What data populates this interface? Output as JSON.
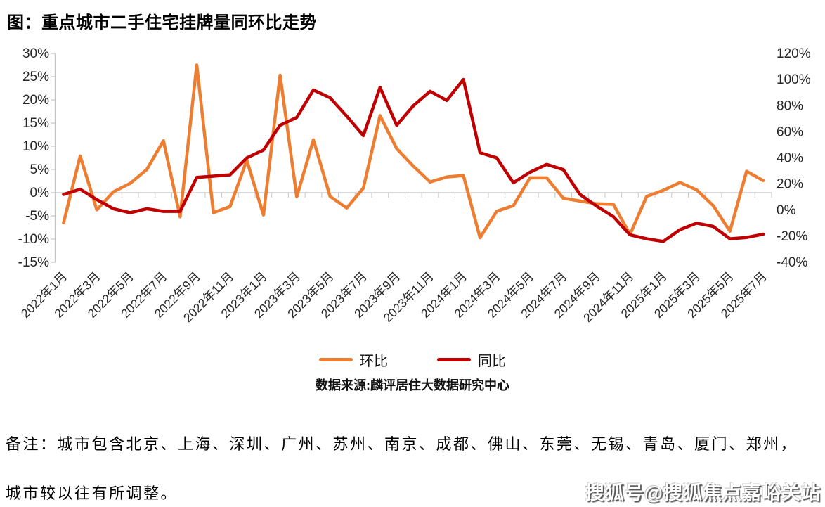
{
  "page": {
    "title": "图：重点城市二手住宅挂牌量同环比走势"
  },
  "chart_data": {
    "type": "line",
    "title": "图：重点城市二手住宅挂牌量同环比走势",
    "categories": [
      "2022年1月",
      "2022年2月",
      "2022年3月",
      "2022年4月",
      "2022年5月",
      "2022年6月",
      "2022年7月",
      "2022年8月",
      "2022年9月",
      "2022年10月",
      "2022年11月",
      "2022年12月",
      "2023年1月",
      "2023年2月",
      "2023年3月",
      "2023年4月",
      "2023年5月",
      "2023年6月",
      "2023年7月",
      "2023年8月",
      "2023年9月",
      "2023年10月",
      "2023年11月",
      "2023年12月",
      "2024年1月",
      "2024年2月",
      "2024年3月",
      "2024年4月",
      "2024年5月",
      "2024年6月",
      "2024年7月",
      "2024年8月",
      "2024年9月",
      "2024年10月",
      "2024年11月",
      "2024年12月",
      "2025年1月",
      "2025年2月",
      "2025年3月",
      "2025年4月",
      "2025年5月",
      "2025年6月",
      "2025年7月"
    ],
    "x_label_interval": 2,
    "series": [
      {
        "name": "环比",
        "axis": "left",
        "color": "#ED7D31",
        "values": [
          -6.5,
          7.9,
          -3.7,
          0.2,
          2.0,
          5.0,
          11.2,
          -5.2,
          27.5,
          -4.3,
          -3.0,
          7.0,
          -4.8,
          25.3,
          -0.9,
          11.4,
          -0.8,
          -3.3,
          1.0,
          16.6,
          9.5,
          5.7,
          2.3,
          3.4,
          3.7,
          -9.7,
          -4.0,
          -2.8,
          3.2,
          3.2,
          -1.2,
          -1.8,
          -2.4,
          -2.5,
          -9.0,
          -0.8,
          0.5,
          2.2,
          0.6,
          -2.8,
          -8.3,
          4.6,
          2.6
        ]
      },
      {
        "name": "同比",
        "axis": "right",
        "color": "#C00000",
        "values": [
          12,
          16,
          8,
          1,
          -2,
          1,
          -1,
          -1,
          25,
          26,
          27,
          40,
          46,
          65,
          71,
          92,
          86,
          72,
          57,
          94,
          65,
          80,
          91,
          84,
          100,
          44,
          40,
          21,
          29,
          35,
          31,
          12,
          3,
          -5,
          -19,
          -22,
          -24,
          -15,
          -10,
          -12.5,
          -22,
          -21,
          -18.5
        ]
      }
    ],
    "left_axis": {
      "min": -15,
      "max": 30,
      "step": 5,
      "ticks": [
        "30%",
        "25%",
        "20%",
        "15%",
        "10%",
        "5%",
        "0%",
        "-5%",
        "-10%",
        "-15%"
      ]
    },
    "right_axis": {
      "min": -40,
      "max": 120,
      "step": 20,
      "ticks": [
        "120%",
        "100%",
        "80%",
        "60%",
        "40%",
        "20%",
        "0%",
        "-20%",
        "-40%"
      ]
    },
    "grid": "zero-line-only",
    "legend_position": "bottom-center"
  },
  "legend": {
    "items": [
      {
        "label": "环比",
        "color": "#ED7D31"
      },
      {
        "label": "同比",
        "color": "#C00000"
      }
    ]
  },
  "source_note": "数据来源:麟评居住大数据研究中心",
  "footnote": {
    "line1": "备注：城市包含北京、上海、深圳、广州、苏州、南京、成都、佛山、东莞、无锡、青岛、厦门、郑州，",
    "line2": "城市较以往有所调整。"
  },
  "watermark": "搜狐号@搜狐焦点嘉峪关站",
  "colors": {
    "series_mom": "#ED7D31",
    "series_yoy": "#C00000",
    "axis_line": "#C6C6C6",
    "zero_line": "#D6D6D6",
    "axis_text": "#262626"
  }
}
